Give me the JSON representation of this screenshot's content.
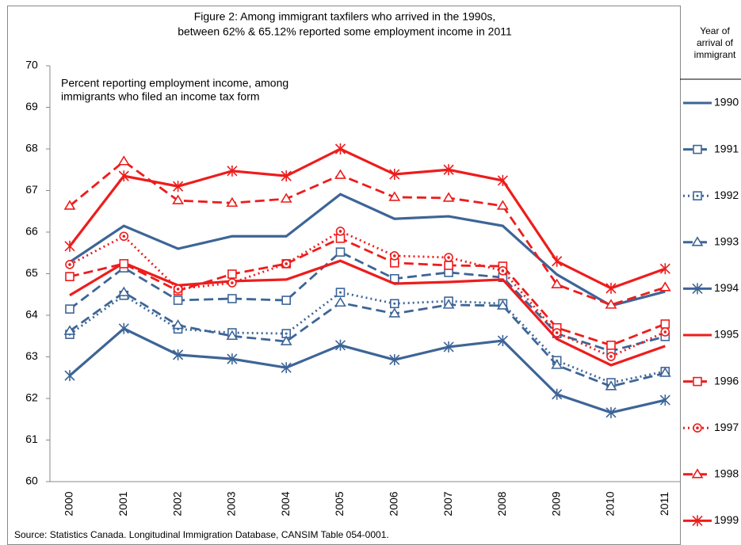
{
  "chart_data": {
    "type": "line",
    "title": [
      "Figure 2: Among immigrant taxfilers who arrived in the 1990s,",
      "between 62% & 65.12% reported some employment income in 2011"
    ],
    "annotation": [
      "Percent reporting employment income, among",
      "immigrants who filed an income tax form"
    ],
    "source": "Source:  Statistics Canada. Longitudinal Immigration Database, CANSIM Table 054-0001.",
    "legend_title": [
      "Year of",
      "arrival of",
      "immigrant"
    ],
    "legend_position": "right",
    "grid": false,
    "categories": [
      "2000",
      "2001",
      "2002",
      "2003",
      "2004",
      "2005",
      "2006",
      "2007",
      "2008",
      "2009",
      "2010",
      "2011"
    ],
    "ylim": [
      60,
      70
    ],
    "yticks": [
      60,
      61,
      62,
      63,
      64,
      65,
      66,
      67,
      68,
      69,
      70
    ],
    "series": [
      {
        "name": "1990",
        "color": "#3d6597",
        "dash": "solid",
        "marker": "none",
        "values": [
          65.28,
          66.15,
          65.6,
          65.9,
          65.9,
          66.91,
          66.32,
          66.38,
          66.15,
          64.98,
          64.23,
          64.57
        ]
      },
      {
        "name": "1991",
        "color": "#3d6597",
        "dash": "dash",
        "marker": "square",
        "values": [
          64.15,
          65.14,
          64.36,
          64.4,
          64.36,
          65.52,
          64.88,
          65.03,
          64.91,
          63.56,
          63.14,
          63.49
        ]
      },
      {
        "name": "1992",
        "color": "#3d6597",
        "dash": "dot",
        "marker": "square-dot",
        "values": [
          63.54,
          64.48,
          63.67,
          63.58,
          63.56,
          64.55,
          64.28,
          64.34,
          64.28,
          62.91,
          62.38,
          62.65
        ]
      },
      {
        "name": "1993",
        "color": "#3d6597",
        "dash": "dash",
        "marker": "triangle",
        "values": [
          63.62,
          64.55,
          63.76,
          63.5,
          63.37,
          64.3,
          64.04,
          64.25,
          64.23,
          62.8,
          62.29,
          62.61
        ]
      },
      {
        "name": "1994",
        "color": "#3d6597",
        "dash": "solid",
        "marker": "star",
        "values": [
          62.55,
          63.68,
          63.05,
          62.95,
          62.74,
          63.28,
          62.93,
          63.24,
          63.39,
          62.1,
          61.66,
          61.96
        ]
      },
      {
        "name": "1995",
        "color": "#ee1c1c",
        "dash": "solid",
        "marker": "none",
        "values": [
          64.48,
          65.26,
          64.72,
          64.82,
          64.86,
          65.31,
          64.76,
          64.8,
          64.86,
          63.43,
          62.8,
          63.26
        ]
      },
      {
        "name": "1996",
        "color": "#ee1c1c",
        "dash": "dash",
        "marker": "square",
        "values": [
          64.93,
          65.24,
          64.59,
          64.99,
          65.24,
          65.85,
          65.26,
          65.2,
          65.18,
          63.7,
          63.28,
          63.79
        ]
      },
      {
        "name": "1997",
        "color": "#ee1c1c",
        "dash": "dot",
        "marker": "circle-dot",
        "values": [
          65.22,
          65.9,
          64.63,
          64.78,
          65.24,
          66.02,
          65.43,
          65.39,
          65.07,
          63.58,
          63.01,
          63.6
        ]
      },
      {
        "name": "1998",
        "color": "#ee1c1c",
        "dash": "dash",
        "marker": "triangle",
        "values": [
          66.63,
          67.7,
          66.76,
          66.7,
          66.8,
          67.37,
          66.84,
          66.82,
          66.63,
          64.74,
          64.25,
          64.67
        ]
      },
      {
        "name": "1999",
        "color": "#ee1c1c",
        "dash": "solid",
        "marker": "star",
        "values": [
          65.66,
          67.35,
          67.1,
          67.47,
          67.35,
          68.0,
          67.39,
          67.5,
          67.24,
          65.3,
          64.65,
          65.12
        ]
      }
    ]
  }
}
